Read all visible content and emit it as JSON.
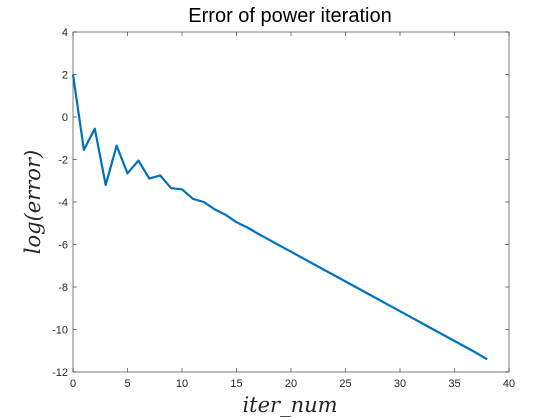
{
  "chart_data": {
    "type": "line",
    "title": "Error of power iteration",
    "xlabel": "iter_num",
    "ylabel": "log(error)",
    "xlim": [
      0,
      40
    ],
    "ylim": [
      -12,
      4
    ],
    "xticks": [
      "0",
      "5",
      "10",
      "15",
      "20",
      "25",
      "30",
      "35",
      "40"
    ],
    "yticks": [
      "4",
      "2",
      "0",
      "-2",
      "-4",
      "-6",
      "-8",
      "-10",
      "-12"
    ],
    "grid": false,
    "line_color": "#0072BD",
    "series": [
      {
        "x": [
          0,
          1,
          2,
          3,
          4,
          5,
          6,
          7,
          8,
          9,
          10,
          11,
          12,
          13,
          14,
          15,
          16,
          17,
          18,
          19,
          20,
          21,
          22,
          23,
          24,
          25,
          26,
          27,
          28,
          29,
          30,
          31,
          32,
          33,
          34,
          35,
          36,
          37,
          38
        ],
        "y": [
          2.0,
          -1.55,
          -0.55,
          -3.2,
          -1.35,
          -2.65,
          -2.05,
          -2.9,
          -2.75,
          -3.35,
          -3.4,
          -3.85,
          -4.0,
          -4.35,
          -4.6,
          -4.95,
          -5.2,
          -5.5,
          -5.78,
          -6.06,
          -6.34,
          -6.62,
          -6.9,
          -7.18,
          -7.46,
          -7.74,
          -8.02,
          -8.3,
          -8.58,
          -8.86,
          -9.14,
          -9.42,
          -9.7,
          -9.98,
          -10.26,
          -10.54,
          -10.82,
          -11.1,
          -11.4
        ]
      }
    ]
  }
}
